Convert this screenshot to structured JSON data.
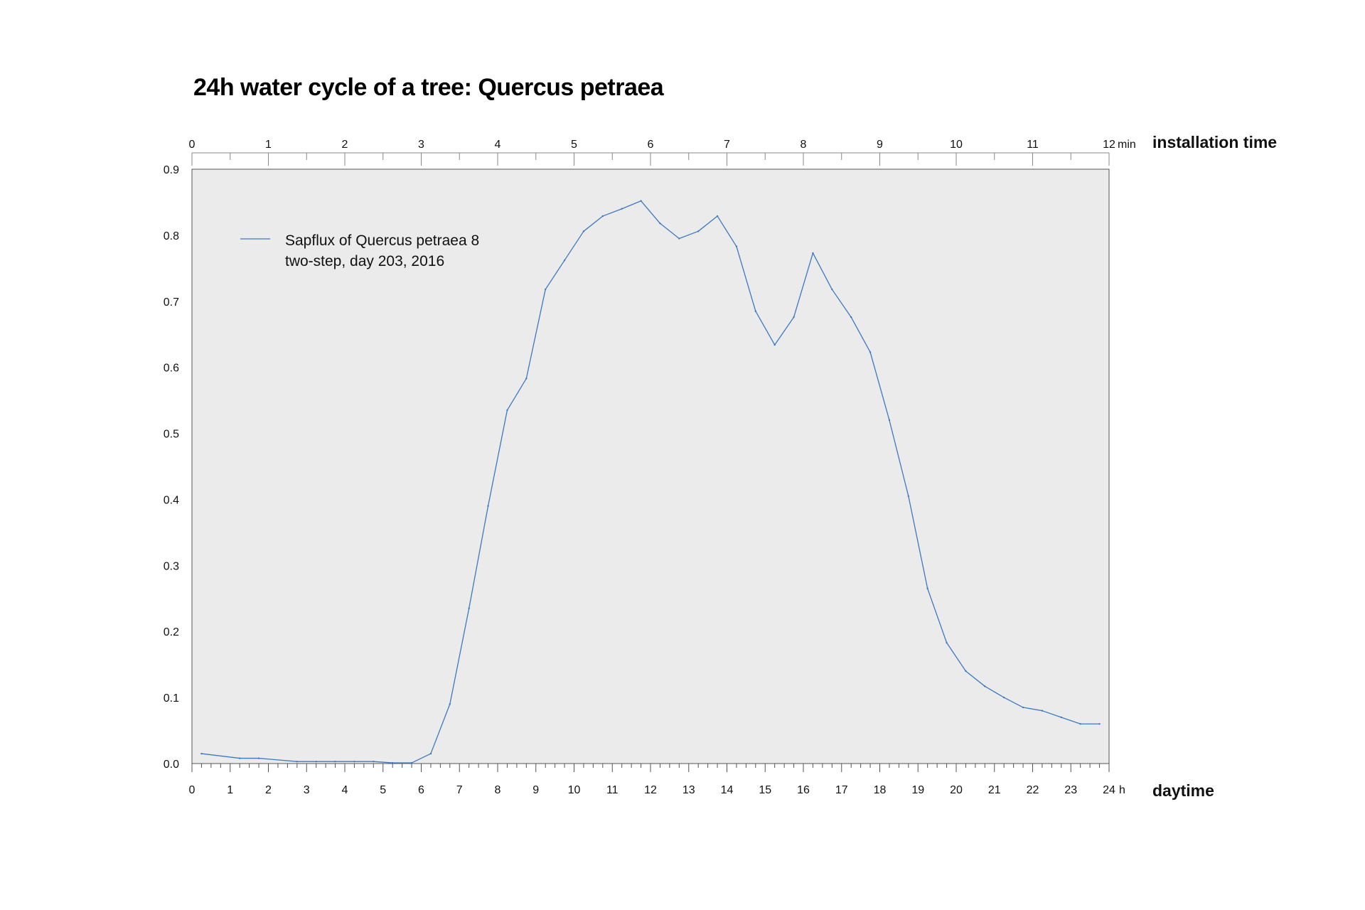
{
  "chart_data": {
    "type": "line",
    "title": "24h water cycle of a tree: Quercus petraea",
    "xlabel": "daytime",
    "x_unit": "h",
    "x2label": "installation time",
    "x2_unit": "min",
    "ylabel": "",
    "xlim": [
      0,
      24
    ],
    "x2lim": [
      0,
      12
    ],
    "ylim": [
      0,
      0.9
    ],
    "x_ticks": [
      0,
      1,
      2,
      3,
      4,
      5,
      6,
      7,
      8,
      9,
      10,
      11,
      12,
      13,
      14,
      15,
      16,
      17,
      18,
      19,
      20,
      21,
      22,
      23,
      24
    ],
    "x2_ticks": [
      0,
      1,
      2,
      3,
      4,
      5,
      6,
      7,
      8,
      9,
      10,
      11,
      12
    ],
    "y_ticks": [
      "0.0",
      "0.1",
      "0.2",
      "0.3",
      "0.4",
      "0.5",
      "0.6",
      "0.7",
      "0.8",
      "0.9"
    ],
    "grid": false,
    "legend": {
      "placement": "top-left",
      "lines": [
        "Sapflux of Quercus petraea 8",
        "two-step, day 203, 2016"
      ]
    },
    "colors": {
      "line": "#3d78c2",
      "plot_bg": "#ebebeb",
      "axis": "#555555"
    },
    "series": [
      {
        "name": "Sapflux of Quercus petraea 8 two-step, day 203, 2016",
        "x": [
          0.25,
          1.25,
          1.75,
          2.75,
          3.25,
          3.75,
          4.25,
          4.75,
          5.25,
          5.75,
          6.25,
          6.75,
          7.25,
          7.75,
          8.25,
          8.75,
          9.25,
          9.75,
          10.25,
          10.75,
          11.25,
          11.75,
          12.25,
          12.75,
          13.25,
          13.75,
          14.25,
          14.75,
          15.25,
          15.75,
          16.25,
          16.75,
          17.25,
          17.75,
          18.25,
          18.75,
          19.25,
          19.75,
          20.25,
          20.75,
          21.25,
          21.75,
          22.25,
          22.75,
          23.25,
          23.75
        ],
        "y": [
          0.015,
          0.008,
          0.008,
          0.003,
          0.003,
          0.003,
          0.003,
          0.003,
          0.001,
          0.001,
          0.015,
          0.09,
          0.235,
          0.39,
          0.535,
          0.583,
          0.718,
          0.762,
          0.806,
          0.829,
          0.84,
          0.852,
          0.818,
          0.795,
          0.806,
          0.829,
          0.783,
          0.685,
          0.634,
          0.676,
          0.773,
          0.718,
          0.676,
          0.623,
          0.52,
          0.405,
          0.265,
          0.183,
          0.14,
          0.117,
          0.1,
          0.085,
          0.08,
          0.07,
          0.06,
          0.06
        ]
      }
    ]
  }
}
